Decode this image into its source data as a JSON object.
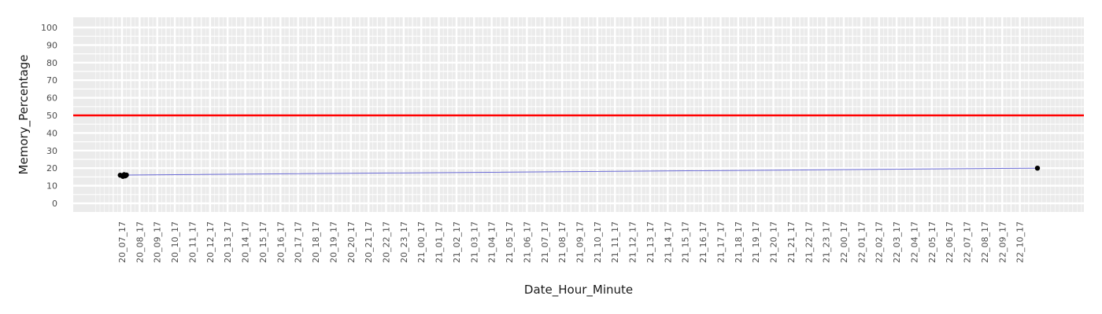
{
  "chart_data": {
    "type": "line",
    "title": "",
    "xlabel": "Date_Hour_Minute",
    "ylabel": "Memory_Percentage",
    "ylim": [
      -5,
      105
    ],
    "y_ticks": [
      0,
      10,
      20,
      30,
      40,
      50,
      60,
      70,
      80,
      90,
      100
    ],
    "x_ticks": [
      "20_07_17",
      "20_08_17",
      "20_09_17",
      "20_10_17",
      "20_11_17",
      "20_12_17",
      "20_13_17",
      "20_14_17",
      "20_15_17",
      "20_16_17",
      "20_17_17",
      "20_18_17",
      "20_19_17",
      "20_20_17",
      "20_21_17",
      "20_22_17",
      "20_23_17",
      "21_00_17",
      "21_01_17",
      "21_02_17",
      "21_03_17",
      "21_04_17",
      "21_05_17",
      "21_06_17",
      "21_07_17",
      "21_08_17",
      "21_09_17",
      "21_10_17",
      "21_11_17",
      "21_12_17",
      "21_13_17",
      "21_14_17",
      "21_15_17",
      "21_16_17",
      "21_17_17",
      "21_18_17",
      "21_19_17",
      "21_20_17",
      "21_21_17",
      "21_22_17",
      "21_23_17",
      "22_00_17",
      "22_01_17",
      "22_02_17",
      "22_03_17",
      "22_04_17",
      "22_05_17",
      "22_06_17",
      "22_07_17",
      "22_08_17",
      "22_09_17",
      "22_10_17"
    ],
    "x_range": [
      -1.75,
      54.5
    ],
    "grid": true,
    "line_color": "#6b6bd6",
    "point_color": "#000000",
    "series": [
      {
        "values": [
          {
            "x": -0.1,
            "y": 16
          },
          {
            "x": 0.05,
            "y": 15.3
          },
          {
            "x": 0.12,
            "y": 16.3
          },
          {
            "x": 0.18,
            "y": 15.6
          },
          {
            "x": 0.25,
            "y": 16.1
          },
          {
            "x": 52.0,
            "y": 20
          }
        ]
      }
    ],
    "reference_line": {
      "y": 50,
      "color": "#ff0000"
    }
  }
}
